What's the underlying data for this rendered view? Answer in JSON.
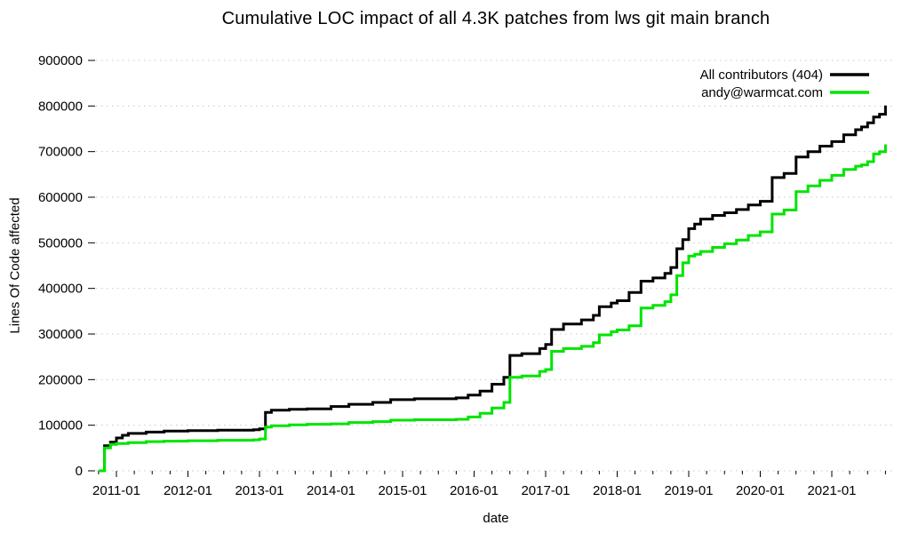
{
  "title": "Cumulative LOC impact of all 4.3K patches from lws git main branch",
  "chart_data": {
    "type": "line",
    "title": "Cumulative LOC impact of all 4.3K patches from lws git main branch",
    "xlabel": "date",
    "ylabel": "Lines Of Code affected",
    "ylim": [
      0,
      900000
    ],
    "y_ticks": [
      0,
      100000,
      200000,
      300000,
      400000,
      500000,
      600000,
      700000,
      800000,
      900000
    ],
    "x_ticks": [
      "2011-01",
      "2012-01",
      "2013-01",
      "2014-01",
      "2015-01",
      "2016-01",
      "2017-01",
      "2018-01",
      "2019-01",
      "2020-01",
      "2021-01"
    ],
    "x_minor_tick_interval_months": 3,
    "grid": "horizontal-dotted",
    "grid_color": "#c8c8c8",
    "axis_color": "#000000",
    "legend_position": "top-right",
    "interpolation": "step-after",
    "series": [
      {
        "name": "All contributors (404)",
        "color": "#000000",
        "points": [
          [
            "2010-10",
            0
          ],
          [
            "2010-11",
            55000
          ],
          [
            "2010-12",
            63000
          ],
          [
            "2011-01",
            72000
          ],
          [
            "2011-02",
            78000
          ],
          [
            "2011-03",
            82000
          ],
          [
            "2011-06",
            85000
          ],
          [
            "2011-09",
            87000
          ],
          [
            "2012-01",
            88000
          ],
          [
            "2012-06",
            89000
          ],
          [
            "2012-12",
            90000
          ],
          [
            "2013-01",
            92000
          ],
          [
            "2013-02",
            128000
          ],
          [
            "2013-03",
            133000
          ],
          [
            "2013-06",
            135000
          ],
          [
            "2013-09",
            136000
          ],
          [
            "2014-01",
            141000
          ],
          [
            "2014-04",
            146000
          ],
          [
            "2014-08",
            150000
          ],
          [
            "2014-11",
            156000
          ],
          [
            "2015-03",
            158000
          ],
          [
            "2015-10",
            160000
          ],
          [
            "2015-12",
            166000
          ],
          [
            "2016-02",
            175000
          ],
          [
            "2016-04",
            190000
          ],
          [
            "2016-06",
            205000
          ],
          [
            "2016-07",
            253000
          ],
          [
            "2016-09",
            257000
          ],
          [
            "2016-12",
            268000
          ],
          [
            "2017-01",
            277000
          ],
          [
            "2017-02",
            310000
          ],
          [
            "2017-04",
            322000
          ],
          [
            "2017-07",
            331000
          ],
          [
            "2017-09",
            341000
          ],
          [
            "2017-10",
            360000
          ],
          [
            "2017-12",
            368000
          ],
          [
            "2018-01",
            373000
          ],
          [
            "2018-03",
            391000
          ],
          [
            "2018-05",
            416000
          ],
          [
            "2018-07",
            423000
          ],
          [
            "2018-09",
            433000
          ],
          [
            "2018-10",
            446000
          ],
          [
            "2018-11",
            487000
          ],
          [
            "2018-12",
            507000
          ],
          [
            "2019-01",
            531000
          ],
          [
            "2019-02",
            541000
          ],
          [
            "2019-03",
            552000
          ],
          [
            "2019-05",
            560000
          ],
          [
            "2019-07",
            566000
          ],
          [
            "2019-09",
            573000
          ],
          [
            "2019-11",
            583000
          ],
          [
            "2020-01",
            591000
          ],
          [
            "2020-03",
            643000
          ],
          [
            "2020-05",
            652000
          ],
          [
            "2020-07",
            688000
          ],
          [
            "2020-09",
            700000
          ],
          [
            "2020-11",
            712000
          ],
          [
            "2021-01",
            722000
          ],
          [
            "2021-03",
            737000
          ],
          [
            "2021-05",
            748000
          ],
          [
            "2021-06",
            754000
          ],
          [
            "2021-07",
            763000
          ],
          [
            "2021-08",
            776000
          ],
          [
            "2021-09",
            782000
          ],
          [
            "2021-10",
            801000
          ]
        ]
      },
      {
        "name": "andy@warmcat.com",
        "color": "#00e400",
        "points": [
          [
            "2010-10",
            0
          ],
          [
            "2010-11",
            50000
          ],
          [
            "2010-12",
            58000
          ],
          [
            "2011-01",
            60000
          ],
          [
            "2011-03",
            62000
          ],
          [
            "2011-06",
            64000
          ],
          [
            "2011-09",
            65000
          ],
          [
            "2012-01",
            66000
          ],
          [
            "2012-06",
            67000
          ],
          [
            "2012-12",
            68000
          ],
          [
            "2013-01",
            70000
          ],
          [
            "2013-02",
            96000
          ],
          [
            "2013-03",
            99000
          ],
          [
            "2013-06",
            101000
          ],
          [
            "2013-09",
            102000
          ],
          [
            "2014-01",
            103000
          ],
          [
            "2014-04",
            106000
          ],
          [
            "2014-08",
            108000
          ],
          [
            "2014-11",
            111000
          ],
          [
            "2015-03",
            112000
          ],
          [
            "2015-10",
            113000
          ],
          [
            "2015-12",
            118000
          ],
          [
            "2016-02",
            126000
          ],
          [
            "2016-04",
            138000
          ],
          [
            "2016-06",
            150000
          ],
          [
            "2016-07",
            205000
          ],
          [
            "2016-09",
            208000
          ],
          [
            "2016-12",
            218000
          ],
          [
            "2017-01",
            222000
          ],
          [
            "2017-02",
            262000
          ],
          [
            "2017-04",
            268000
          ],
          [
            "2017-07",
            273000
          ],
          [
            "2017-09",
            281000
          ],
          [
            "2017-10",
            298000
          ],
          [
            "2017-12",
            305000
          ],
          [
            "2018-01",
            309000
          ],
          [
            "2018-03",
            318000
          ],
          [
            "2018-05",
            357000
          ],
          [
            "2018-07",
            363000
          ],
          [
            "2018-09",
            371000
          ],
          [
            "2018-10",
            386000
          ],
          [
            "2018-11",
            428000
          ],
          [
            "2018-12",
            456000
          ],
          [
            "2019-01",
            471000
          ],
          [
            "2019-02",
            475000
          ],
          [
            "2019-03",
            481000
          ],
          [
            "2019-05",
            490000
          ],
          [
            "2019-07",
            498000
          ],
          [
            "2019-09",
            506000
          ],
          [
            "2019-11",
            516000
          ],
          [
            "2020-01",
            524000
          ],
          [
            "2020-03",
            563000
          ],
          [
            "2020-05",
            572000
          ],
          [
            "2020-07",
            612000
          ],
          [
            "2020-09",
            625000
          ],
          [
            "2020-11",
            637000
          ],
          [
            "2021-01",
            648000
          ],
          [
            "2021-03",
            661000
          ],
          [
            "2021-05",
            668000
          ],
          [
            "2021-06",
            671000
          ],
          [
            "2021-07",
            678000
          ],
          [
            "2021-08",
            695000
          ],
          [
            "2021-09",
            700000
          ],
          [
            "2021-10",
            716000
          ]
        ]
      }
    ]
  }
}
